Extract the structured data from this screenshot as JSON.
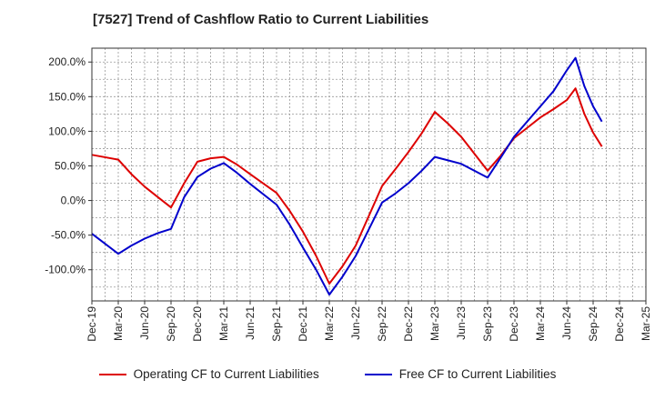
{
  "chart_data": {
    "type": "line",
    "title": "[7527]  Trend of Cashflow Ratio to Current Liabilities",
    "xlabel": "",
    "ylabel": "",
    "ylim": [
      -145,
      220
    ],
    "yticks": [
      -100,
      -50,
      0,
      50,
      100,
      150,
      200
    ],
    "ytick_labels": [
      "-100.0%",
      "-50.0%",
      "0.0%",
      "50.0%",
      "100.0%",
      "150.0%",
      "200.0%"
    ],
    "xtick_labels": [
      "Dec-19",
      "Mar-20",
      "Jun-20",
      "Sep-20",
      "Dec-20",
      "Mar-21",
      "Jun-21",
      "Sep-21",
      "Dec-21",
      "Mar-22",
      "Jun-22",
      "Sep-22",
      "Dec-22",
      "Mar-23",
      "Jun-23",
      "Sep-23",
      "Dec-23",
      "Mar-24",
      "Jun-24",
      "Sep-24",
      "Dec-24",
      "Mar-25"
    ],
    "grid": true,
    "legend_position": "bottom",
    "series": [
      {
        "name": "Operating CF to Current Liabilities",
        "color": "#dd0000",
        "points": [
          [
            0,
            66
          ],
          [
            1,
            59
          ],
          [
            1.5,
            38
          ],
          [
            2,
            20
          ],
          [
            2.5,
            5
          ],
          [
            3,
            -10
          ],
          [
            3.5,
            25
          ],
          [
            4,
            56
          ],
          [
            4.5,
            61
          ],
          [
            5,
            63
          ],
          [
            5.5,
            52
          ],
          [
            6,
            38
          ],
          [
            7,
            11
          ],
          [
            7.5,
            -15
          ],
          [
            8,
            -45
          ],
          [
            8.5,
            -80
          ],
          [
            9,
            -120
          ],
          [
            9.5,
            -95
          ],
          [
            10,
            -65
          ],
          [
            11,
            21
          ],
          [
            11.5,
            45
          ],
          [
            12,
            70
          ],
          [
            12.5,
            97
          ],
          [
            13,
            128
          ],
          [
            13.5,
            111
          ],
          [
            14,
            92
          ],
          [
            15,
            43
          ],
          [
            15.5,
            65
          ],
          [
            16,
            90
          ],
          [
            16.5,
            105
          ],
          [
            17,
            120
          ],
          [
            17.5,
            132
          ],
          [
            18,
            145
          ],
          [
            18.33,
            162
          ],
          [
            18.67,
            125
          ],
          [
            19,
            98
          ],
          [
            19.33,
            78
          ]
        ]
      },
      {
        "name": "Free CF to Current Liabilities",
        "color": "#0000cc",
        "points": [
          [
            0,
            -48
          ],
          [
            1,
            -77
          ],
          [
            1.5,
            -65
          ],
          [
            2,
            -55
          ],
          [
            2.5,
            -47
          ],
          [
            3,
            -41
          ],
          [
            3.5,
            5
          ],
          [
            4,
            34
          ],
          [
            4.5,
            46
          ],
          [
            5,
            54
          ],
          [
            5.5,
            40
          ],
          [
            6,
            24
          ],
          [
            7,
            -6
          ],
          [
            7.5,
            -35
          ],
          [
            8,
            -68
          ],
          [
            8.5,
            -100
          ],
          [
            9,
            -136
          ],
          [
            9.5,
            -110
          ],
          [
            10,
            -80
          ],
          [
            11,
            -3
          ],
          [
            11.5,
            10
          ],
          [
            12,
            25
          ],
          [
            12.5,
            43
          ],
          [
            13,
            63
          ],
          [
            13.5,
            58
          ],
          [
            14,
            53
          ],
          [
            15,
            33
          ],
          [
            15.5,
            62
          ],
          [
            16,
            92
          ],
          [
            16.5,
            114
          ],
          [
            17,
            136
          ],
          [
            17.5,
            158
          ],
          [
            18,
            188
          ],
          [
            18.33,
            206
          ],
          [
            18.67,
            165
          ],
          [
            19,
            136
          ],
          [
            19.33,
            114
          ]
        ]
      }
    ]
  }
}
